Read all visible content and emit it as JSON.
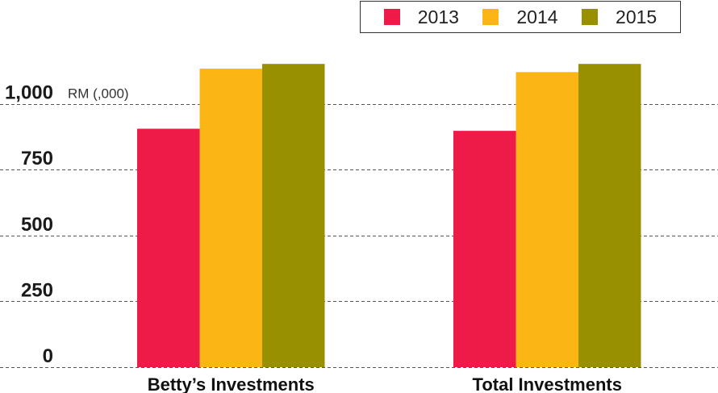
{
  "chart_data": {
    "type": "bar",
    "categories": [
      "Betty’s Investments",
      "Total Investments"
    ],
    "series": [
      {
        "name": "2013",
        "color": "#ee1a48",
        "values": [
          905,
          897
        ]
      },
      {
        "name": "2014",
        "color": "#fbb616",
        "values": [
          1133,
          1120
        ]
      },
      {
        "name": "2015",
        "color": "#999000",
        "values": [
          1151,
          1151
        ]
      }
    ],
    "ylabel": "RM (,000)",
    "yticks": [
      0,
      250,
      500,
      750,
      1000
    ],
    "ytick_labels": [
      "0",
      "250",
      "500",
      "750",
      "1,000"
    ],
    "ylim": [
      0,
      1250
    ],
    "grid": "dashed horizontal",
    "legend": "top-right"
  }
}
